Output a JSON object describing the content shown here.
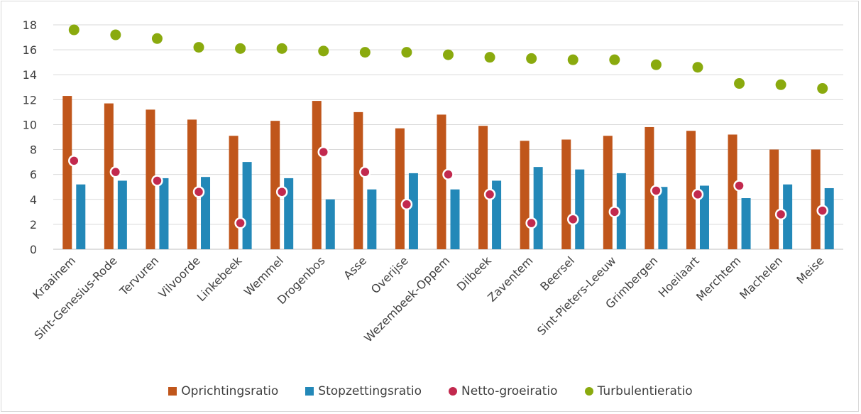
{
  "chart_data": {
    "type": "bar",
    "categories": [
      "Kraainem",
      "Sint-Genesius-Rode",
      "Tervuren",
      "Vilvoorde",
      "Linkebeek",
      "Wemmel",
      "Drogenbos",
      "Asse",
      "Overijse",
      "Wezembeek-Oppem",
      "Dilbeek",
      "Zaventem",
      "Beersel",
      "Sint-Pieters-Leeuw",
      "Grimbergen",
      "Hoeilaart",
      "Merchtem",
      "Machelen",
      "Meise"
    ],
    "series": [
      {
        "name": "Oprichtingsratio",
        "kind": "bar",
        "color": "#c0561b",
        "values": [
          12.3,
          11.7,
          11.2,
          10.4,
          9.1,
          10.3,
          11.9,
          11.0,
          9.7,
          10.8,
          9.9,
          8.7,
          8.8,
          9.1,
          9.8,
          9.5,
          9.2,
          8.0,
          8.0
        ]
      },
      {
        "name": "Stopzettingsratio",
        "kind": "bar",
        "color": "#2388b8",
        "values": [
          5.2,
          5.5,
          5.7,
          5.8,
          7.0,
          5.7,
          4.0,
          4.8,
          6.1,
          4.8,
          5.5,
          6.6,
          6.4,
          6.1,
          5.0,
          5.1,
          4.1,
          5.2,
          4.9
        ]
      },
      {
        "name": "Netto-groeiratio",
        "kind": "dot",
        "color": "#c2294e",
        "values": [
          7.1,
          6.2,
          5.5,
          4.6,
          2.1,
          4.6,
          7.8,
          6.2,
          3.6,
          6.0,
          4.4,
          2.1,
          2.4,
          3.0,
          4.7,
          4.4,
          5.1,
          2.8,
          3.1
        ]
      },
      {
        "name": "Turbulentieratio",
        "kind": "dot",
        "color": "#8aaa0e",
        "values": [
          17.6,
          17.2,
          16.9,
          16.2,
          16.1,
          16.1,
          15.9,
          15.8,
          15.8,
          15.6,
          15.4,
          15.3,
          15.2,
          15.2,
          14.8,
          14.6,
          13.3,
          13.2,
          12.9
        ]
      }
    ],
    "ylim": [
      0,
      18
    ],
    "yticks": [
      0,
      2,
      4,
      6,
      8,
      10,
      12,
      14,
      16,
      18
    ],
    "grid": true,
    "legend": "bottom",
    "title": "",
    "xlabel": "",
    "ylabel": ""
  }
}
